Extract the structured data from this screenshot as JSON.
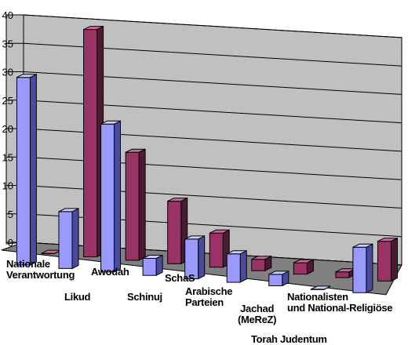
{
  "chart_data": {
    "type": "bar",
    "title": "",
    "xlabel": "",
    "ylabel": "",
    "ylim": [
      0,
      40
    ],
    "yticks": [
      "0",
      "5",
      "10",
      "15",
      "20",
      "25",
      "30",
      "35",
      "40"
    ],
    "grid": true,
    "legend": "none",
    "categories": [
      "Nationale\nVerantwortung",
      "Likud",
      "Awodah",
      "Schinuj",
      "SchaS",
      "Arabische\nParteien",
      "Jachad\n(MeReZ)",
      "Torah Judentum",
      "Nationalisten\nund National-Religiöse"
    ],
    "series": [
      {
        "values": [
          33,
          10,
          26,
          3,
          7,
          5,
          2,
          0,
          8
        ]
      },
      {
        "values": [
          0,
          40,
          19,
          11,
          6,
          2,
          2,
          1,
          7
        ]
      }
    ],
    "colors": {
      "series_front": [
        "#9999ff",
        "#993366"
      ],
      "series_side": [
        "#4b4b9e",
        "#4d1a33"
      ],
      "series_top": [
        "#ccccff",
        "#cc6699"
      ],
      "wall": "#c0c0c0",
      "floor": "#808080",
      "gridline": "#000000"
    }
  }
}
